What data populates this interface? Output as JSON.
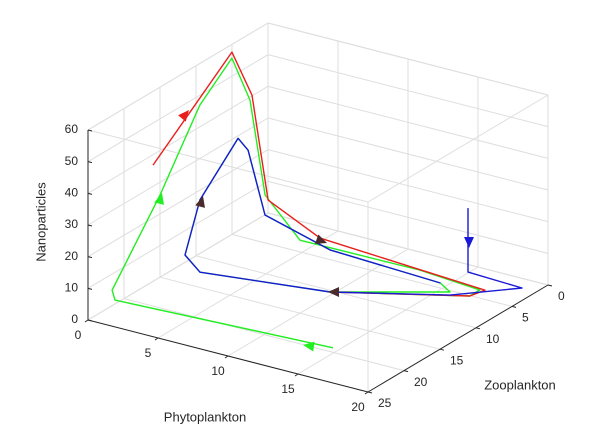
{
  "chart_data": {
    "type": "line3d",
    "xlabel": "Phytoplankton",
    "ylabel": "Zooplankton",
    "zlabel": "Nanoparticles",
    "xlim": [
      0,
      20
    ],
    "ylim": [
      0,
      25
    ],
    "zlim": [
      0,
      60
    ],
    "xticks": [
      0,
      5,
      10,
      15,
      20
    ],
    "yticks": [
      0,
      5,
      10,
      15,
      20,
      25
    ],
    "zticks": [
      0,
      10,
      20,
      30,
      40,
      50,
      60
    ],
    "grid": true,
    "series": [
      {
        "color": "#22ee22",
        "x": [
          15.96,
          0.9,
          0.69,
          2.57,
          1.31,
          0.51,
          1.8,
          3.39,
          6.4,
          13.9,
          17.7,
          17.5,
          10.1,
          2.34,
          1.27,
          1.31,
          2.49,
          2.69,
          3.9,
          9.06,
          15.4,
          16.6,
          10.1
        ],
        "y": [
          22,
          23,
          23,
          20,
          12,
          6,
          6,
          7,
          8,
          6,
          5,
          6,
          11,
          14,
          14,
          12,
          9,
          8,
          8,
          9,
          6,
          7,
          11
        ],
        "z": [
          5.3,
          4.6,
          7.5,
          35.6,
          51.8,
          57.6,
          45.8,
          19.0,
          9.5,
          5.9,
          2.6,
          1.8,
          1.4,
          2.9,
          7.1,
          21.8,
          38.6,
          33.7,
          14.6,
          10.8,
          3.5,
          3.4,
          1.4
        ]
      },
      {
        "color": "#e8201c",
        "x": [
          0.53,
          1.63,
          0.51,
          1.94,
          3.09,
          6.8,
          17.56,
          17.5,
          10.1
        ],
        "y": [
          17,
          14,
          6,
          6,
          6,
          6,
          4,
          6,
          11
        ],
        "z": [
          38.7,
          52.6,
          59.5,
          47.5,
          15.7,
          7.9,
          1.0,
          1.8,
          1.4
        ]
      },
      {
        "color": "#1a1ad6",
        "x": [
          15.83,
          15.83,
          19.17,
          16.1,
          10.1,
          2.34,
          1.27,
          1.31,
          2.49,
          2.69,
          3.9,
          9.06,
          15.4
        ],
        "y": [
          3,
          3,
          2,
          6,
          11,
          14,
          14,
          12,
          9,
          8,
          8,
          9,
          6
        ],
        "z": [
          23.6,
          3.4,
          0.8,
          0.5,
          1.4,
          2.9,
          7.1,
          21.8,
          38.6,
          33.7,
          14.6,
          10.8,
          3.5
        ]
      }
    ]
  }
}
